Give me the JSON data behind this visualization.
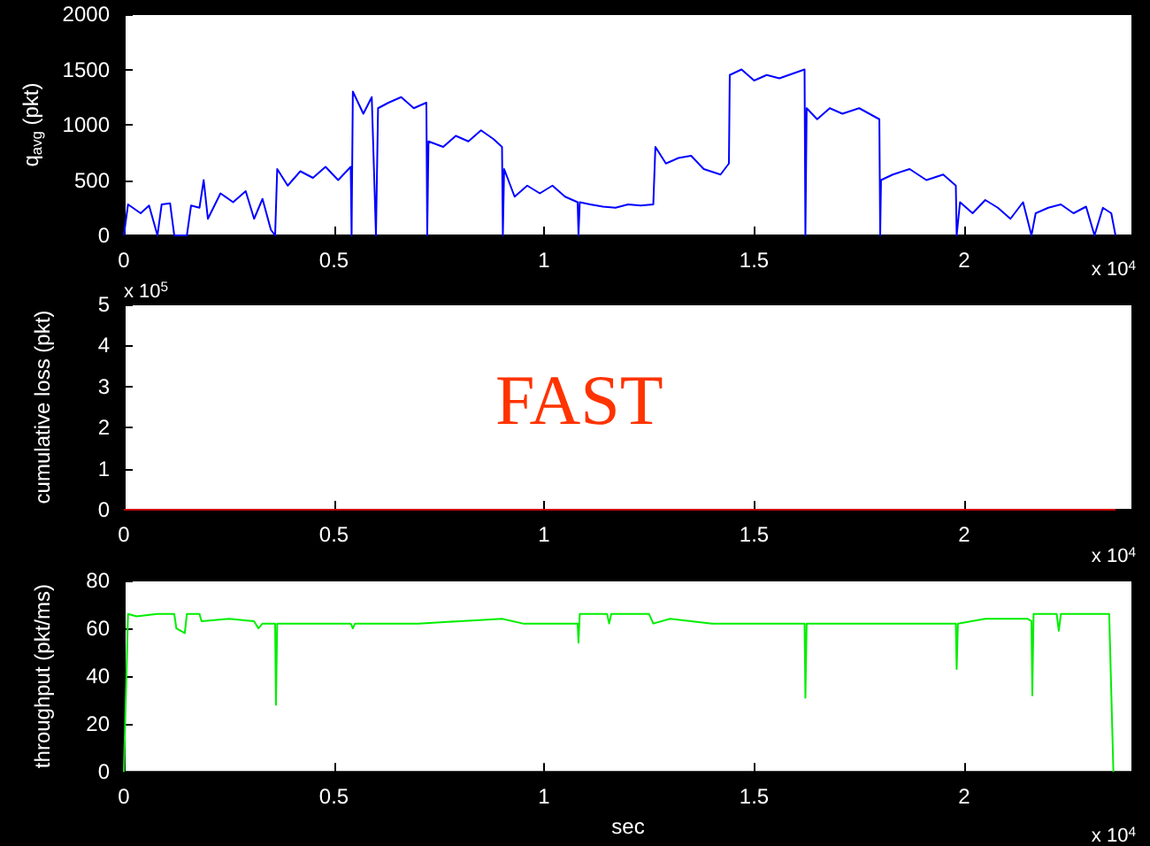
{
  "chart_data": [
    {
      "type": "line",
      "ylabel": "q$_{avg}$ (pkt)",
      "annotations": [
        "x 10$^{4}$"
      ],
      "xlim": [
        0,
        2.4
      ],
      "xticks": [
        0,
        0.5,
        1,
        1.5,
        2
      ],
      "ylim": [
        0,
        2000
      ],
      "yticks": [
        0,
        500,
        1000,
        1500,
        2000
      ],
      "grid": false,
      "marker": "none",
      "series": [
        {
          "color": "#0000ff",
          "x": [
            0,
            0.01,
            0.04,
            0.06,
            0.08,
            0.09,
            0.11,
            0.12,
            0.15,
            0.16,
            0.18,
            0.19,
            0.2,
            0.23,
            0.26,
            0.29,
            0.31,
            0.33,
            0.35,
            0.36,
            0.365,
            0.39,
            0.42,
            0.45,
            0.48,
            0.51,
            0.54,
            0.542,
            0.545,
            0.57,
            0.59,
            0.6,
            0.605,
            0.63,
            0.66,
            0.69,
            0.72,
            0.722,
            0.725,
            0.76,
            0.79,
            0.82,
            0.85,
            0.88,
            0.9,
            0.902,
            0.905,
            0.93,
            0.96,
            0.99,
            1.02,
            1.05,
            1.08,
            1.082,
            1.085,
            1.11,
            1.14,
            1.17,
            1.2,
            1.23,
            1.26,
            1.265,
            1.29,
            1.32,
            1.35,
            1.38,
            1.42,
            1.44,
            1.442,
            1.47,
            1.5,
            1.53,
            1.56,
            1.62,
            1.622,
            1.625,
            1.65,
            1.68,
            1.71,
            1.75,
            1.798,
            1.8,
            1.802,
            1.83,
            1.87,
            1.91,
            1.95,
            1.98,
            1.982,
            1.99,
            2.02,
            2.05,
            2.08,
            2.11,
            2.14,
            2.16,
            2.17,
            2.2,
            2.23,
            2.26,
            2.29,
            2.31,
            2.33,
            2.35,
            2.36
          ],
          "values": [
            0,
            280,
            200,
            270,
            0,
            280,
            290,
            0,
            0,
            270,
            250,
            500,
            150,
            380,
            300,
            400,
            150,
            330,
            50,
            0,
            600,
            450,
            580,
            520,
            620,
            500,
            620,
            0,
            1300,
            1100,
            1250,
            0,
            1150,
            1200,
            1250,
            1150,
            1200,
            0,
            850,
            800,
            900,
            850,
            950,
            870,
            800,
            0,
            600,
            350,
            450,
            380,
            450,
            350,
            300,
            0,
            300,
            280,
            260,
            250,
            280,
            270,
            280,
            800,
            650,
            700,
            720,
            600,
            550,
            650,
            1450,
            1500,
            1400,
            1450,
            1420,
            1500,
            0,
            1150,
            1050,
            1150,
            1100,
            1150,
            1050,
            0,
            500,
            550,
            600,
            500,
            550,
            450,
            0,
            300,
            200,
            320,
            250,
            150,
            300,
            0,
            200,
            250,
            280,
            200,
            260,
            0,
            250,
            200,
            0
          ]
        }
      ]
    },
    {
      "type": "line",
      "ylabel": "cumulative loss (pkt)",
      "annotations": [
        "x 10$^{5}$",
        "FAST",
        "x 10$^{4}$"
      ],
      "xlim": [
        0,
        2.4
      ],
      "xticks": [
        0,
        0.5,
        1,
        1.5,
        2
      ],
      "ylim": [
        0,
        5
      ],
      "yticks": [
        0,
        1,
        2,
        3,
        4,
        5
      ],
      "grid": false,
      "marker": "none",
      "series": [
        {
          "color": "#cc0000",
          "x": [
            0,
            2.36
          ],
          "values": [
            0,
            0
          ]
        }
      ]
    },
    {
      "type": "line",
      "xlabel": "sec",
      "ylabel": "throughput (pkt/ms)",
      "annotations": [
        "x 10$^{4}$"
      ],
      "xlim": [
        0,
        2.4
      ],
      "xticks": [
        0,
        0.5,
        1,
        1.5,
        2
      ],
      "ylim": [
        0,
        80
      ],
      "yticks": [
        0,
        20,
        40,
        60,
        80
      ],
      "grid": false,
      "marker": "none",
      "series": [
        {
          "color": "#00ee00",
          "x": [
            0,
            0.01,
            0.03,
            0.08,
            0.12,
            0.125,
            0.145,
            0.15,
            0.18,
            0.185,
            0.25,
            0.31,
            0.32,
            0.33,
            0.36,
            0.362,
            0.365,
            0.5,
            0.54,
            0.545,
            0.55,
            0.7,
            0.8,
            0.9,
            0.95,
            1.08,
            1.082,
            1.085,
            1.15,
            1.155,
            1.16,
            1.25,
            1.26,
            1.3,
            1.4,
            1.62,
            1.622,
            1.625,
            1.8,
            1.98,
            1.982,
            1.985,
            2.05,
            2.15,
            2.16,
            2.162,
            2.165,
            2.22,
            2.225,
            2.23,
            2.33,
            2.345,
            2.355
          ],
          "values": [
            0,
            66,
            65,
            66,
            66,
            60,
            58,
            66,
            66,
            63,
            64,
            63,
            60,
            62,
            62,
            28,
            62,
            62,
            62,
            60,
            62,
            62,
            63,
            64,
            62,
            62,
            54,
            66,
            66,
            62,
            66,
            66,
            62,
            64,
            62,
            62,
            31,
            62,
            62,
            62,
            43,
            62,
            64,
            64,
            63,
            32,
            66,
            66,
            59,
            66,
            66,
            66,
            0
          ]
        }
      ]
    }
  ]
}
